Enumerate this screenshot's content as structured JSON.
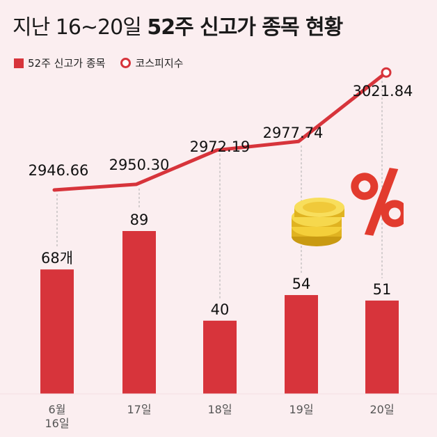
{
  "title": {
    "light": "지난 16~20일 ",
    "bold": "52주 신고가 종목 현황"
  },
  "legend": {
    "bar": "52주 신고가 종목",
    "line": "코스피지수"
  },
  "colors": {
    "bar": "#d7343b",
    "line": "#d7343b",
    "background": "#fbeef0"
  },
  "decoration": {
    "coin_icon": "coin-stack-icon",
    "percent_icon": "percent-icon"
  },
  "chart_data": {
    "type": "bar",
    "categories": [
      "6월\n16일",
      "17일",
      "18일",
      "19일",
      "20일"
    ],
    "series": [
      {
        "name": "52주 신고가 종목",
        "type": "bar",
        "values": [
          68,
          89,
          40,
          54,
          51
        ],
        "labels": [
          "68개",
          "89",
          "40",
          "54",
          "51"
        ]
      },
      {
        "name": "코스피지수",
        "type": "line",
        "values": [
          2946.66,
          2950.3,
          2972.19,
          2977.74,
          3021.84
        ],
        "labels": [
          "2946.66",
          "2950.30",
          "2972.19",
          "2977.74",
          "3021.84"
        ]
      }
    ],
    "grid": false,
    "legend_position": "top-left"
  }
}
